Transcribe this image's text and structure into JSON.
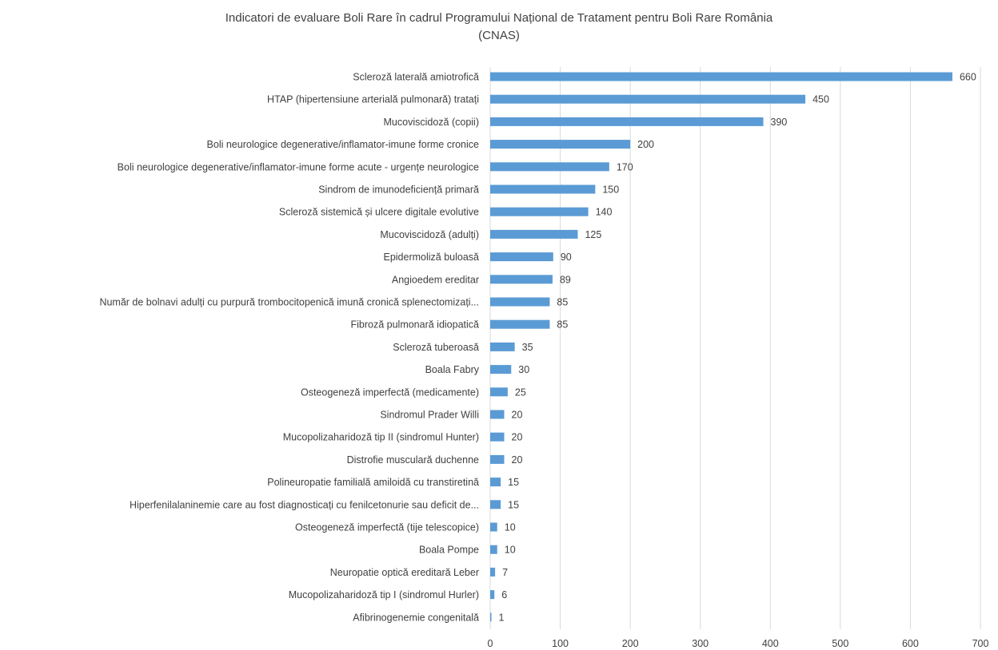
{
  "chart_data": {
    "type": "bar",
    "orientation": "horizontal",
    "title_lines": [
      "Indicatori de evaluare Boli Rare în cadrul Programului Național de Tratament pentru Boli Rare România",
      "(CNAS)"
    ],
    "categories": [
      "Scleroză laterală amiotrofică",
      "HTAP (hipertensiune arterială pulmonară) tratați",
      "Mucoviscidoză (copii)",
      "Boli neurologice degenerative/inflamator-imune forme cronice",
      "Boli neurologice degenerative/inflamator-imune forme acute - urgențe neurologice",
      "Sindrom de imunodeficiență primară",
      "Scleroză sistemică și ulcere digitale evolutive",
      "Mucoviscidoză (adulți)",
      "Epidermoliză buloasă",
      "Angioedem ereditar",
      "Număr de bolnavi adulți cu purpură trombocitopenică imună cronică splenectomizați...",
      "Fibroză pulmonară idiopatică",
      "Scleroză tuberoasă",
      "Boala Fabry",
      "Osteogeneză imperfectă (medicamente)",
      "Sindromul Prader Willi",
      "Mucopolizaharidoză tip II (sindromul Hunter)",
      "Distrofie musculară duchenne",
      "Polineuropatie familială amiloidă cu transtiretină",
      "Hiperfenilalaninemie care au fost diagnosticați cu fenilcetonurie sau deficit de...",
      "Osteogeneză imperfectă (tije telescopice)",
      "Boala Pompe",
      "Neuropatie optică ereditară Leber",
      "Mucopolizaharidoză tip I (sindromul Hurler)",
      "Afibrinogenemie congenitală"
    ],
    "values": [
      660,
      450,
      390,
      200,
      170,
      150,
      140,
      125,
      90,
      89,
      85,
      85,
      35,
      30,
      25,
      20,
      20,
      20,
      15,
      15,
      10,
      10,
      7,
      6,
      1
    ],
    "xlim": [
      0,
      700
    ],
    "xticks": [
      0,
      100,
      200,
      300,
      400,
      500,
      600,
      700
    ],
    "grid": "vertical",
    "legend": "none",
    "data_labels": true,
    "bar_color": "#5b9bd5",
    "grid_color": "#d9d9d9"
  }
}
